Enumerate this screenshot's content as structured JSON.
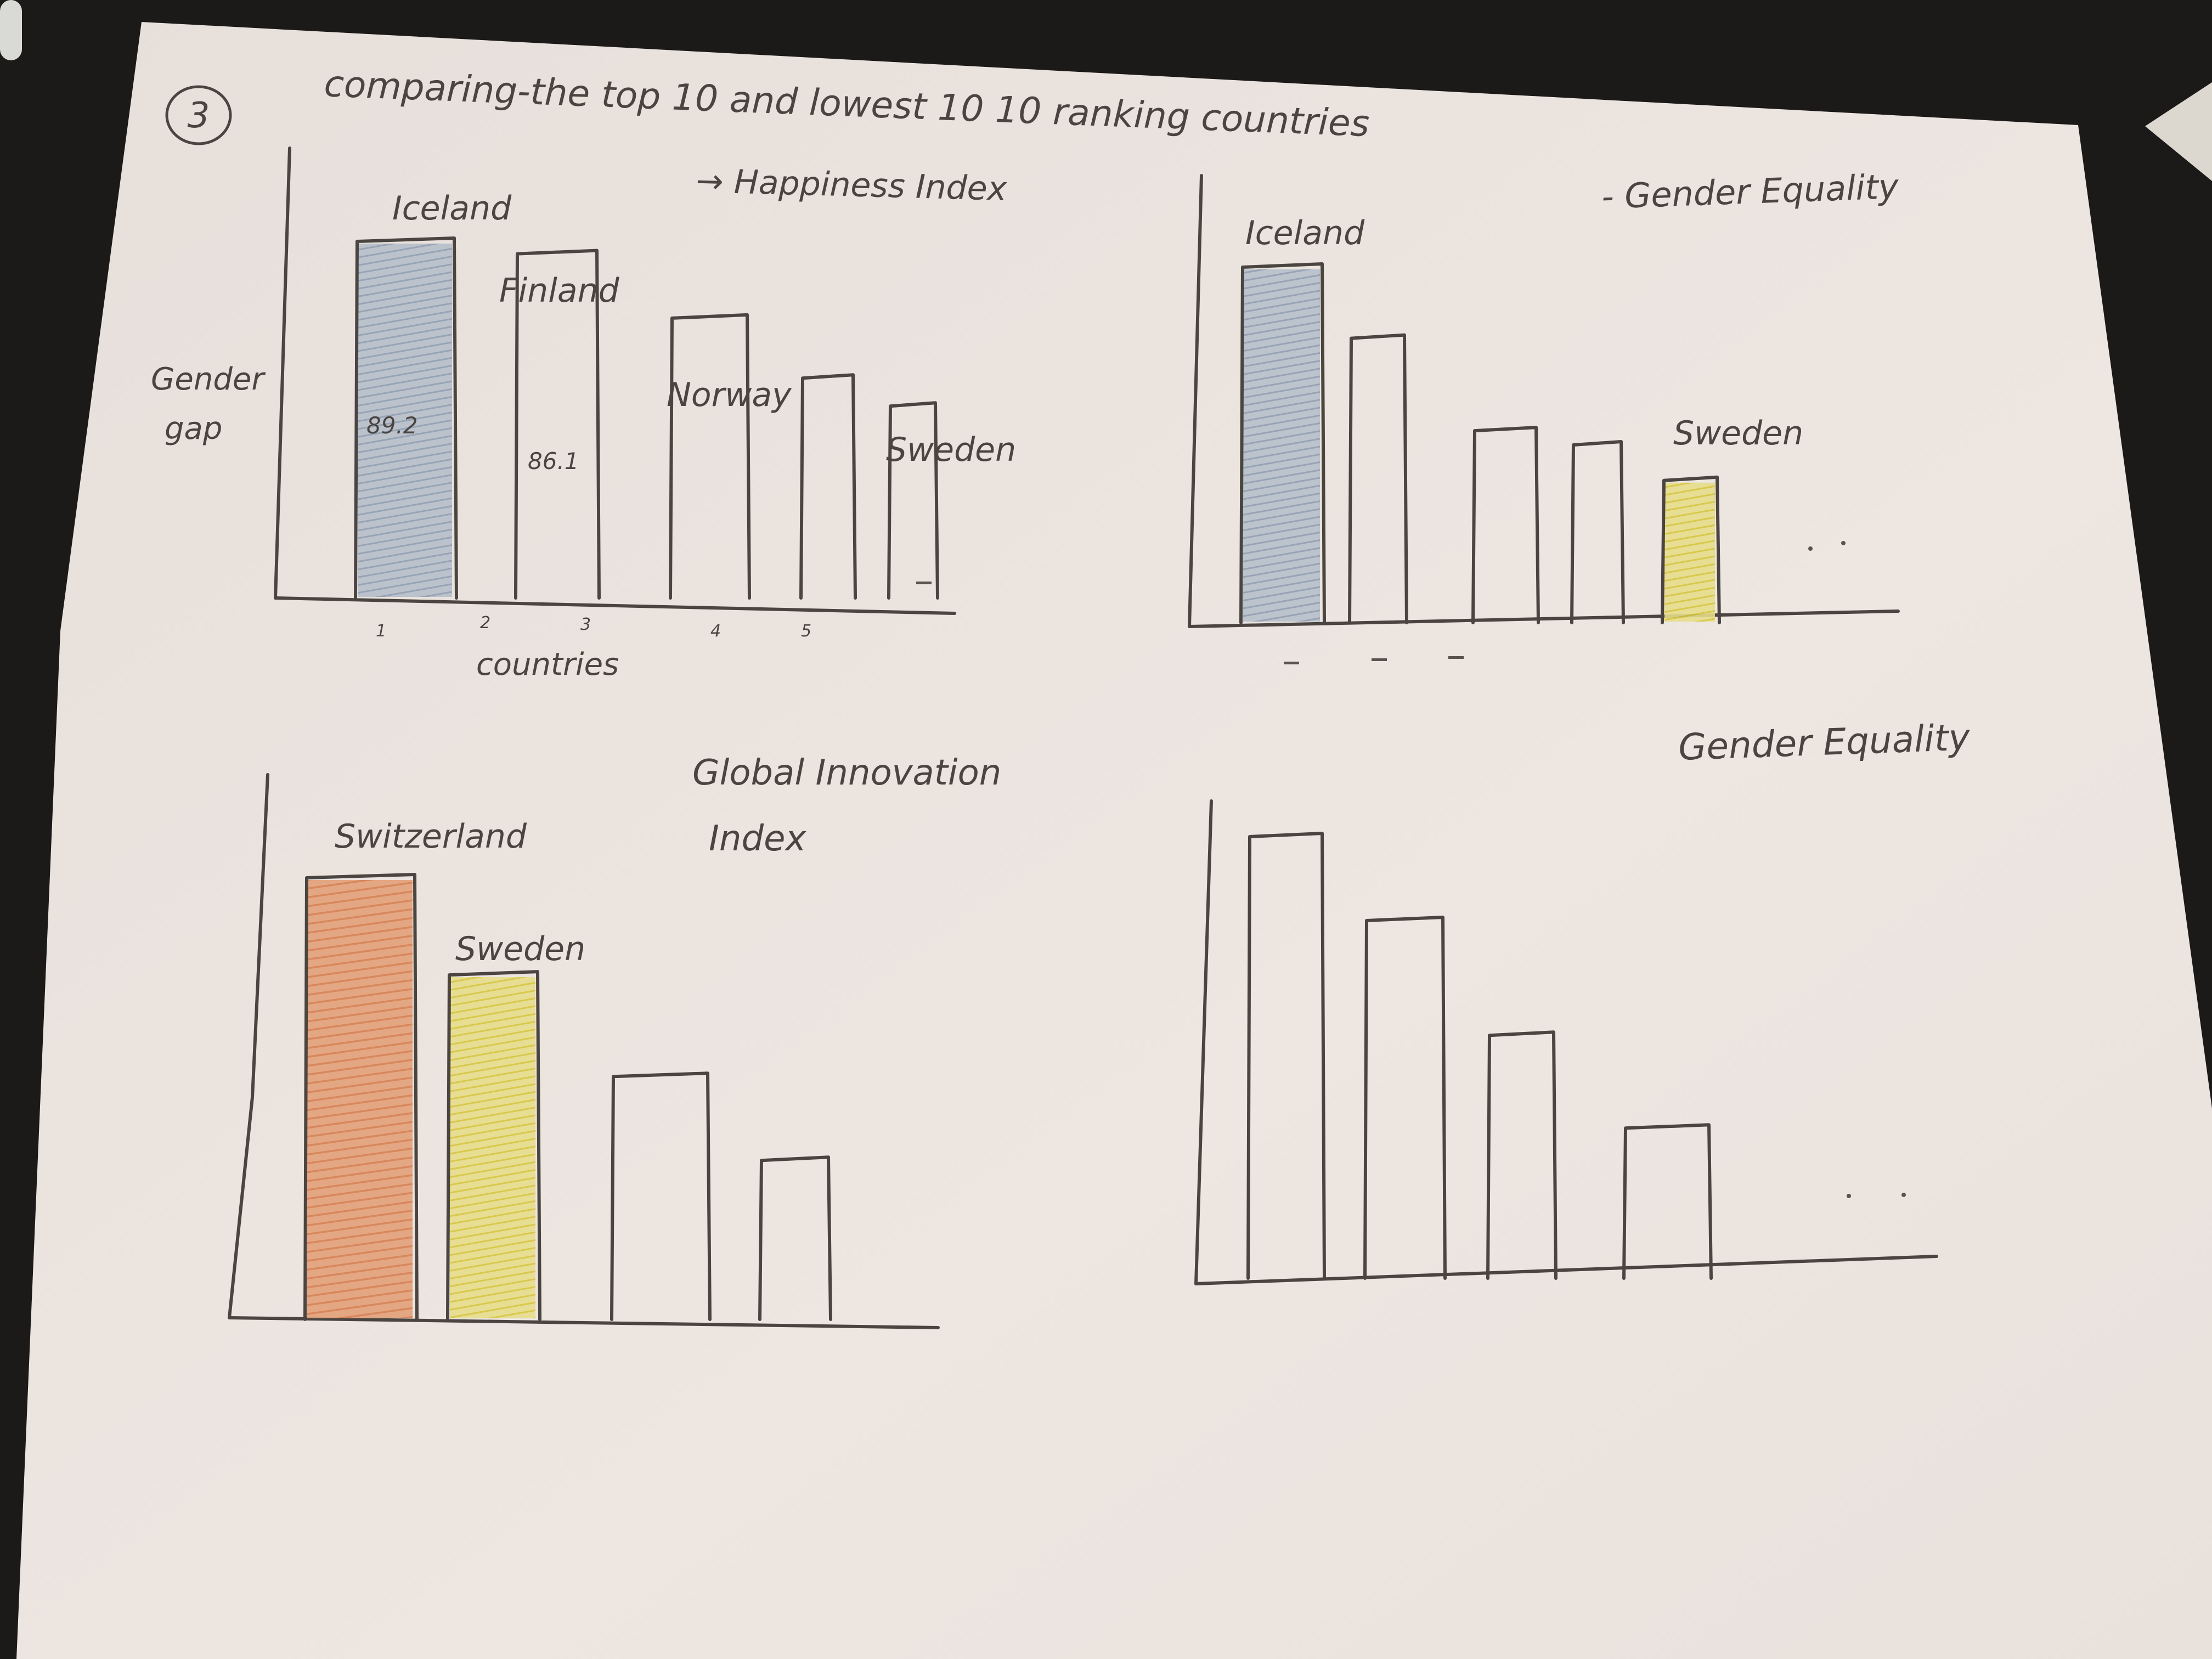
{
  "page": {
    "section_number": "3",
    "heading": "comparing-the top 10 and lowest 10 10 ranking countries"
  },
  "colors": {
    "paper": "#ebe3de",
    "pencil": "#4a4540",
    "blue_shade": "#9aa8b8",
    "yellow_shade": "#dccc4a",
    "orange_shade": "#dd8a5a"
  },
  "charts": {
    "happiness": {
      "title": "→ Happiness Index",
      "ylabel_line1": "Gender",
      "ylabel_line2": "gap",
      "xlabel": "countries",
      "ticks": [
        "1",
        "2",
        "3",
        "4",
        "5"
      ]
    },
    "gender_top": {
      "title": "- Gender Equality"
    },
    "innovation": {
      "title_line1": "Global Innovation",
      "title_line2": "Index"
    },
    "gender_bottom": {
      "title": "Gender Equality"
    }
  },
  "chart_data": [
    {
      "type": "bar",
      "title": "→ Happiness Index",
      "ylabel": "Gender gap",
      "xlabel": "countries",
      "categories": [
        "Iceland",
        "Finland",
        "Norway",
        "",
        "Sweden"
      ],
      "values": [
        89.2,
        86.1,
        70,
        55,
        48
      ],
      "data_labels": [
        "89.2",
        "86.1",
        "",
        "",
        ""
      ],
      "shading": [
        "blue",
        "none",
        "none",
        "none",
        "none"
      ]
    },
    {
      "type": "bar",
      "title": "- Gender Equality",
      "categories": [
        "Iceland",
        "",
        "",
        "",
        "Sweden"
      ],
      "values": [
        100,
        80,
        54,
        50,
        40
      ],
      "shading": [
        "blue",
        "none",
        "none",
        "none",
        "yellow"
      ]
    },
    {
      "type": "bar",
      "title": "Global Innovation Index",
      "categories": [
        "Switzerland",
        "Sweden",
        "",
        ""
      ],
      "values": [
        100,
        78,
        55,
        36
      ],
      "shading": [
        "orange",
        "yellow",
        "none",
        "none"
      ]
    },
    {
      "type": "bar",
      "title": "Gender Equality",
      "categories": [
        "",
        "",
        "",
        ""
      ],
      "values": [
        100,
        81,
        55,
        34
      ],
      "shading": [
        "none",
        "none",
        "none",
        "none"
      ]
    }
  ]
}
